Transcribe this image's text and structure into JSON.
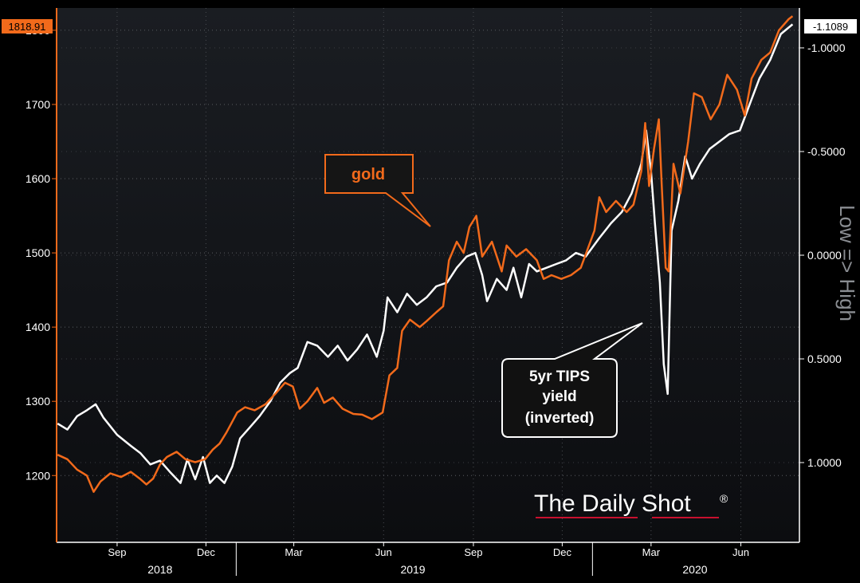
{
  "chart_data": {
    "type": "line",
    "x_axis": {
      "months": [
        {
          "label": "Sep",
          "date": "2018-09-01"
        },
        {
          "label": "Dec",
          "date": "2018-12-01"
        },
        {
          "label": "Mar",
          "date": "2019-03-01"
        },
        {
          "label": "Jun",
          "date": "2019-06-01"
        },
        {
          "label": "Sep",
          "date": "2019-09-01"
        },
        {
          "label": "Dec",
          "date": "2019-12-01"
        },
        {
          "label": "Mar",
          "date": "2020-03-01"
        },
        {
          "label": "Jun",
          "date": "2020-06-01"
        }
      ],
      "years": [
        {
          "label": "2018",
          "date": "2018-10-15"
        },
        {
          "label": "2019",
          "date": "2019-07-01"
        },
        {
          "label": "2020",
          "date": "2020-04-15"
        }
      ],
      "range": [
        "2018-07-01",
        "2020-07-31"
      ]
    },
    "left_axis": {
      "ticks": [
        "1200",
        "1300",
        "1400",
        "1500",
        "1600",
        "1700",
        "1800"
      ],
      "range": [
        1110,
        1830
      ]
    },
    "right_axis": {
      "label": "Low => High",
      "ticks": [
        "1.0000",
        "0.5000",
        "0.0000",
        "-0.5000",
        "-1.0000"
      ],
      "inverted": true
    },
    "last_values": {
      "left": "1818.91",
      "right": "-1.1089"
    },
    "annotations": {
      "gold_box": "gold",
      "tips_box": [
        "5yr TIPS",
        "yield",
        "(inverted)"
      ]
    },
    "watermark": "The Daily Shot",
    "watermark_mark": "®",
    "grid": true,
    "series": [
      {
        "name": "gold",
        "color": "#f26a1b",
        "points": [
          [
            "2018-07-02",
            1228
          ],
          [
            "2018-07-12",
            1222
          ],
          [
            "2018-07-22",
            1208
          ],
          [
            "2018-08-01",
            1200
          ],
          [
            "2018-08-08",
            1178
          ],
          [
            "2018-08-15",
            1192
          ],
          [
            "2018-08-25",
            1203
          ],
          [
            "2018-09-05",
            1198
          ],
          [
            "2018-09-15",
            1205
          ],
          [
            "2018-09-25",
            1195
          ],
          [
            "2018-10-01",
            1188
          ],
          [
            "2018-10-08",
            1196
          ],
          [
            "2018-10-15",
            1215
          ],
          [
            "2018-10-22",
            1225
          ],
          [
            "2018-11-01",
            1232
          ],
          [
            "2018-11-10",
            1222
          ],
          [
            "2018-11-20",
            1218
          ],
          [
            "2018-11-30",
            1222
          ],
          [
            "2018-12-08",
            1235
          ],
          [
            "2018-12-15",
            1243
          ],
          [
            "2018-12-22",
            1258
          ],
          [
            "2019-01-02",
            1285
          ],
          [
            "2019-01-10",
            1292
          ],
          [
            "2019-01-20",
            1288
          ],
          [
            "2019-01-31",
            1296
          ],
          [
            "2019-02-10",
            1310
          ],
          [
            "2019-02-20",
            1325
          ],
          [
            "2019-02-28",
            1320
          ],
          [
            "2019-03-07",
            1290
          ],
          [
            "2019-03-15",
            1300
          ],
          [
            "2019-03-25",
            1318
          ],
          [
            "2019-04-01",
            1298
          ],
          [
            "2019-04-10",
            1305
          ],
          [
            "2019-04-20",
            1290
          ],
          [
            "2019-05-01",
            1283
          ],
          [
            "2019-05-10",
            1282
          ],
          [
            "2019-05-20",
            1276
          ],
          [
            "2019-05-31",
            1285
          ],
          [
            "2019-06-07",
            1335
          ],
          [
            "2019-06-15",
            1345
          ],
          [
            "2019-06-20",
            1395
          ],
          [
            "2019-06-28",
            1410
          ],
          [
            "2019-07-08",
            1400
          ],
          [
            "2019-07-15",
            1408
          ],
          [
            "2019-07-25",
            1420
          ],
          [
            "2019-08-01",
            1428
          ],
          [
            "2019-08-07",
            1490
          ],
          [
            "2019-08-15",
            1515
          ],
          [
            "2019-08-22",
            1500
          ],
          [
            "2019-08-28",
            1535
          ],
          [
            "2019-09-04",
            1550
          ],
          [
            "2019-09-10",
            1495
          ],
          [
            "2019-09-20",
            1515
          ],
          [
            "2019-09-30",
            1475
          ],
          [
            "2019-10-05",
            1510
          ],
          [
            "2019-10-15",
            1495
          ],
          [
            "2019-10-25",
            1505
          ],
          [
            "2019-11-05",
            1490
          ],
          [
            "2019-11-12",
            1465
          ],
          [
            "2019-11-20",
            1470
          ],
          [
            "2019-11-30",
            1465
          ],
          [
            "2019-12-10",
            1470
          ],
          [
            "2019-12-20",
            1480
          ],
          [
            "2020-01-03",
            1530
          ],
          [
            "2020-01-08",
            1575
          ],
          [
            "2020-01-15",
            1555
          ],
          [
            "2020-01-25",
            1570
          ],
          [
            "2020-02-05",
            1555
          ],
          [
            "2020-02-12",
            1565
          ],
          [
            "2020-02-20",
            1610
          ],
          [
            "2020-02-24",
            1675
          ],
          [
            "2020-02-28",
            1590
          ],
          [
            "2020-03-04",
            1640
          ],
          [
            "2020-03-09",
            1680
          ],
          [
            "2020-03-12",
            1590
          ],
          [
            "2020-03-16",
            1480
          ],
          [
            "2020-03-19",
            1475
          ],
          [
            "2020-03-24",
            1620
          ],
          [
            "2020-03-31",
            1580
          ],
          [
            "2020-04-08",
            1650
          ],
          [
            "2020-04-14",
            1715
          ],
          [
            "2020-04-22",
            1710
          ],
          [
            "2020-05-01",
            1680
          ],
          [
            "2020-05-10",
            1700
          ],
          [
            "2020-05-18",
            1740
          ],
          [
            "2020-05-28",
            1720
          ],
          [
            "2020-06-05",
            1685
          ],
          [
            "2020-06-12",
            1735
          ],
          [
            "2020-06-22",
            1760
          ],
          [
            "2020-07-01",
            1770
          ],
          [
            "2020-07-10",
            1800
          ],
          [
            "2020-07-20",
            1815
          ],
          [
            "2020-07-24",
            1819
          ]
        ]
      },
      {
        "name": "5yr TIPS yield (inverted)",
        "color": "#ffffff",
        "points": [
          [
            "2018-07-02",
            1270
          ],
          [
            "2018-07-12",
            1262
          ],
          [
            "2018-07-22",
            1280
          ],
          [
            "2018-08-01",
            1288
          ],
          [
            "2018-08-10",
            1296
          ],
          [
            "2018-08-18",
            1278
          ],
          [
            "2018-09-01",
            1255
          ],
          [
            "2018-09-15",
            1240
          ],
          [
            "2018-09-25",
            1230
          ],
          [
            "2018-10-05",
            1215
          ],
          [
            "2018-10-15",
            1220
          ],
          [
            "2018-10-25",
            1205
          ],
          [
            "2018-11-05",
            1190
          ],
          [
            "2018-11-12",
            1222
          ],
          [
            "2018-11-20",
            1195
          ],
          [
            "2018-11-28",
            1225
          ],
          [
            "2018-12-05",
            1190
          ],
          [
            "2018-12-12",
            1200
          ],
          [
            "2018-12-20",
            1190
          ],
          [
            "2018-12-28",
            1212
          ],
          [
            "2019-01-05",
            1250
          ],
          [
            "2019-01-15",
            1265
          ],
          [
            "2019-01-25",
            1280
          ],
          [
            "2019-02-05",
            1300
          ],
          [
            "2019-02-15",
            1325
          ],
          [
            "2019-02-25",
            1338
          ],
          [
            "2019-03-05",
            1345
          ],
          [
            "2019-03-15",
            1380
          ],
          [
            "2019-03-25",
            1375
          ],
          [
            "2019-04-05",
            1360
          ],
          [
            "2019-04-15",
            1375
          ],
          [
            "2019-04-25",
            1355
          ],
          [
            "2019-05-05",
            1370
          ],
          [
            "2019-05-15",
            1390
          ],
          [
            "2019-05-25",
            1360
          ],
          [
            "2019-06-01",
            1395
          ],
          [
            "2019-06-05",
            1440
          ],
          [
            "2019-06-15",
            1420
          ],
          [
            "2019-06-25",
            1445
          ],
          [
            "2019-07-05",
            1430
          ],
          [
            "2019-07-15",
            1440
          ],
          [
            "2019-07-25",
            1455
          ],
          [
            "2019-08-05",
            1460
          ],
          [
            "2019-08-15",
            1480
          ],
          [
            "2019-08-25",
            1495
          ],
          [
            "2019-09-03",
            1500
          ],
          [
            "2019-09-10",
            1470
          ],
          [
            "2019-09-15",
            1435
          ],
          [
            "2019-09-25",
            1465
          ],
          [
            "2019-10-05",
            1450
          ],
          [
            "2019-10-12",
            1480
          ],
          [
            "2019-10-20",
            1440
          ],
          [
            "2019-10-28",
            1485
          ],
          [
            "2019-11-05",
            1475
          ],
          [
            "2019-11-15",
            1480
          ],
          [
            "2019-11-25",
            1485
          ],
          [
            "2019-12-05",
            1490
          ],
          [
            "2019-12-15",
            1500
          ],
          [
            "2019-12-25",
            1495
          ],
          [
            "2020-01-08",
            1520
          ],
          [
            "2020-01-20",
            1540
          ],
          [
            "2020-01-31",
            1555
          ],
          [
            "2020-02-10",
            1580
          ],
          [
            "2020-02-20",
            1620
          ],
          [
            "2020-02-25",
            1665
          ],
          [
            "2020-03-01",
            1610
          ],
          [
            "2020-03-05",
            1540
          ],
          [
            "2020-03-10",
            1460
          ],
          [
            "2020-03-14",
            1350
          ],
          [
            "2020-03-18",
            1310
          ],
          [
            "2020-03-22",
            1530
          ],
          [
            "2020-03-29",
            1570
          ],
          [
            "2020-04-05",
            1630
          ],
          [
            "2020-04-12",
            1600
          ],
          [
            "2020-04-20",
            1620
          ],
          [
            "2020-04-30",
            1640
          ],
          [
            "2020-05-10",
            1650
          ],
          [
            "2020-05-20",
            1660
          ],
          [
            "2020-05-31",
            1665
          ],
          [
            "2020-06-10",
            1700
          ],
          [
            "2020-06-20",
            1735
          ],
          [
            "2020-07-01",
            1760
          ],
          [
            "2020-07-12",
            1795
          ],
          [
            "2020-07-24",
            1808
          ]
        ]
      }
    ]
  }
}
